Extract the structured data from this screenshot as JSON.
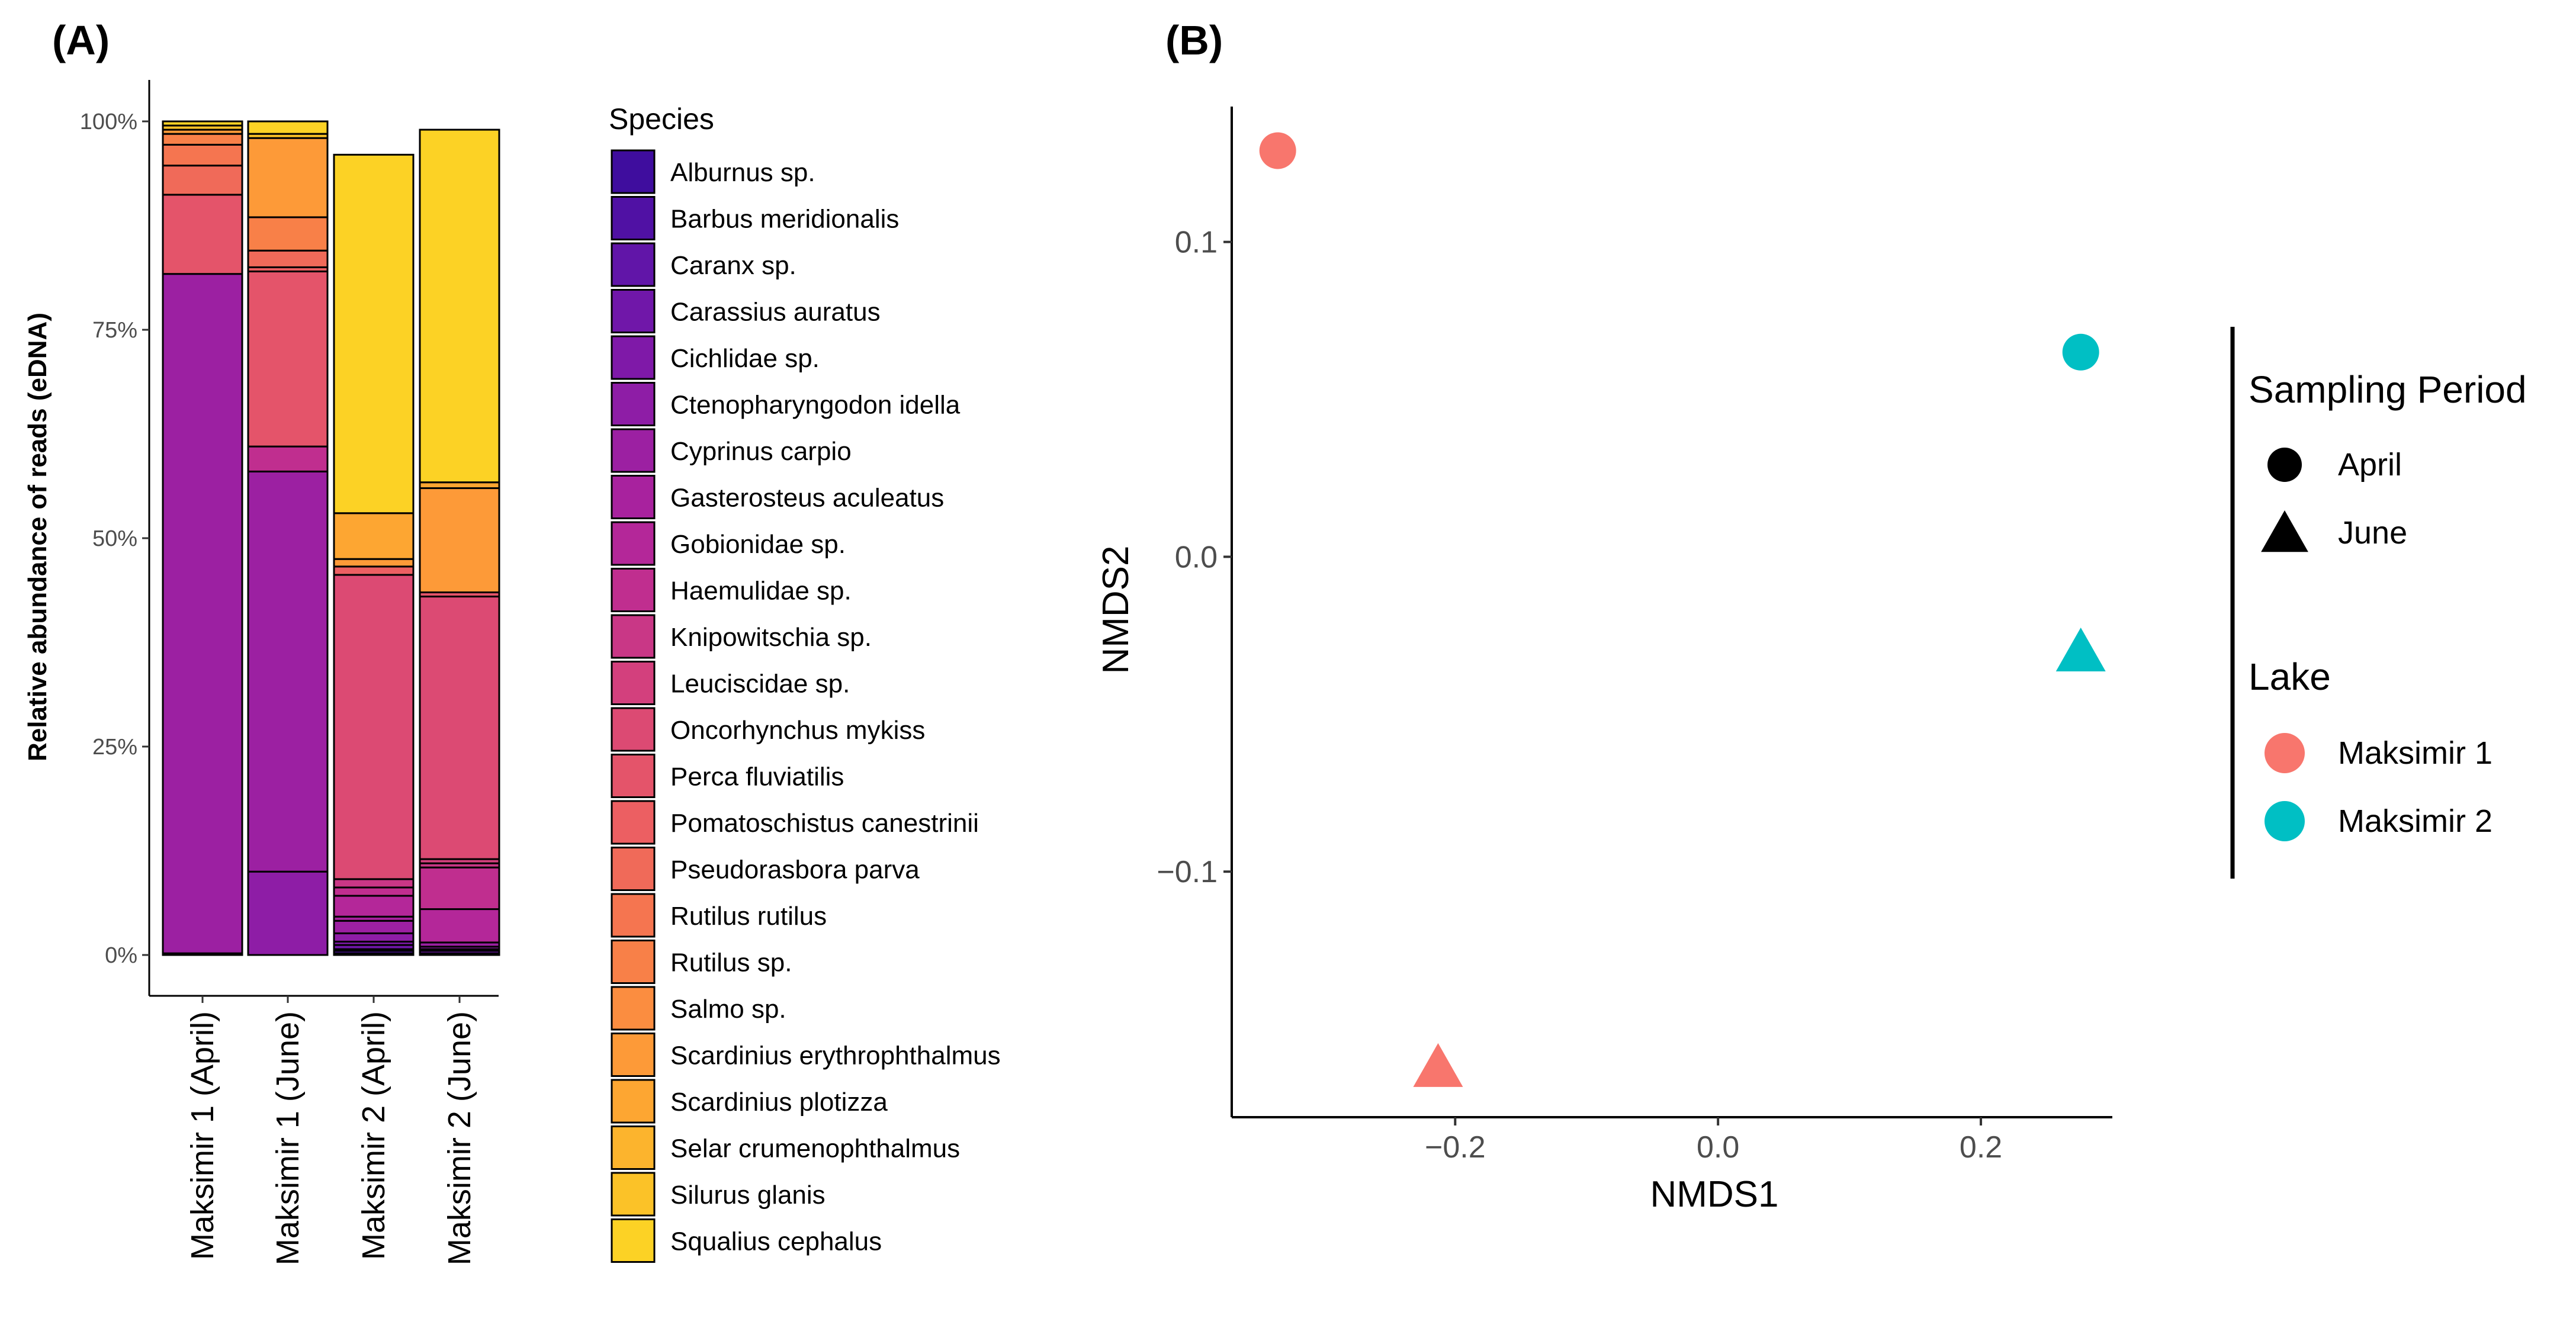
{
  "chart_data": [
    {
      "panel": "(A)",
      "type": "bar",
      "stacked": true,
      "ylabel": "Relative abundance of reads (eDNA)",
      "xlabel": "",
      "ylim": [
        0,
        100
      ],
      "yticks": [
        "0%",
        "25%",
        "50%",
        "75%",
        "100%"
      ],
      "categories": [
        "Maksimir 1 (April)",
        "Maksimir 1 (June)",
        "Maksimir 2 (April)",
        "Maksimir 2 (June)"
      ],
      "legend_title": "Species",
      "legend_position": "right",
      "series": [
        {
          "name": "Alburnus sp.",
          "color": "#3f0d9e",
          "values": [
            0.0,
            0.0,
            0.2,
            0.0
          ]
        },
        {
          "name": "Barbus meridionalis",
          "color": "#5011a4",
          "values": [
            0.2,
            0.0,
            0.3,
            0.2
          ]
        },
        {
          "name": "Caranx sp.",
          "color": "#6115a8",
          "values": [
            0.0,
            0.0,
            0.2,
            0.0
          ]
        },
        {
          "name": "Carassius auratus",
          "color": "#7017a9",
          "values": [
            0.0,
            0.0,
            0.5,
            0.3
          ]
        },
        {
          "name": "Cichlidae sp.",
          "color": "#7f19a8",
          "values": [
            0.0,
            0.0,
            0.4,
            0.2
          ]
        },
        {
          "name": "Ctenopharyngodon idella",
          "color": "#8e1da6",
          "values": [
            0.0,
            10.0,
            1.0,
            0.3
          ]
        },
        {
          "name": "Cyprinus carpio",
          "color": "#9c20a2",
          "values": [
            81.5,
            48.0,
            1.5,
            0.5
          ]
        },
        {
          "name": "Gasterosteus aculeatus",
          "color": "#a8229e",
          "values": [
            0.0,
            0.0,
            0.5,
            0.0
          ]
        },
        {
          "name": "Gobionidae sp.",
          "color": "#b42799",
          "values": [
            0.0,
            0.0,
            2.5,
            4.0
          ]
        },
        {
          "name": "Haemulidae sp.",
          "color": "#c02e8f",
          "values": [
            0.0,
            3.0,
            1.0,
            5.0
          ]
        },
        {
          "name": "Knipowitschia sp.",
          "color": "#c93786",
          "values": [
            0.0,
            0.0,
            1.0,
            0.5
          ]
        },
        {
          "name": "Leuciscidae sp.",
          "color": "#d3407d",
          "values": [
            0.0,
            0.0,
            0.0,
            0.5
          ]
        },
        {
          "name": "Oncorhynchus mykiss",
          "color": "#dc4a73",
          "values": [
            0.0,
            0.0,
            36.5,
            31.5
          ]
        },
        {
          "name": "Perca fluviatilis",
          "color": "#e4546a",
          "values": [
            9.5,
            21.0,
            0.0,
            0.5
          ]
        },
        {
          "name": "Pomatoschistus canestrinii",
          "color": "#ec5f62",
          "values": [
            0.0,
            0.5,
            1.0,
            0.0
          ]
        },
        {
          "name": "Pseudorasbora parva",
          "color": "#f06a59",
          "values": [
            3.5,
            2.0,
            0.0,
            0.0
          ]
        },
        {
          "name": "Rutilus rutilus",
          "color": "#f57550",
          "values": [
            2.5,
            0.0,
            0.0,
            0.0
          ]
        },
        {
          "name": "Rutilus sp.",
          "color": "#f88048",
          "values": [
            1.3,
            4.0,
            0.0,
            0.0
          ]
        },
        {
          "name": "Salmo sp.",
          "color": "#fb8d40",
          "values": [
            0.0,
            0.0,
            0.0,
            0.0
          ]
        },
        {
          "name": "Scardinius erythrophthalmus",
          "color": "#fd9a38",
          "values": [
            0.5,
            9.5,
            0.9,
            12.5
          ]
        },
        {
          "name": "Scardinius plotizza",
          "color": "#fda632",
          "values": [
            0.0,
            0.0,
            5.5,
            0.7
          ]
        },
        {
          "name": "Selar crumenophthalmus",
          "color": "#fcb42d",
          "values": [
            0.0,
            0.0,
            0.0,
            0.0
          ]
        },
        {
          "name": "Silurus glanis",
          "color": "#fbc228",
          "values": [
            0.5,
            0.5,
            0.0,
            0.0
          ]
        },
        {
          "name": "Squalius cephalus",
          "color": "#fcd225",
          "values": [
            0.5,
            1.5,
            43.0,
            42.3
          ]
        }
      ]
    },
    {
      "panel": "(B)",
      "type": "scatter",
      "xlabel": "NMDS1",
      "ylabel": "NMDS2",
      "xlim": [
        -0.37,
        0.3
      ],
      "ylim": [
        -0.178,
        0.143
      ],
      "xticks": [
        -0.2,
        0.0,
        0.2
      ],
      "xtick_labels": [
        "−0.2",
        "0.0",
        "0.2"
      ],
      "yticks": [
        -0.1,
        0.0,
        0.1
      ],
      "ytick_labels": [
        "−0.1",
        "0.0",
        "0.1"
      ],
      "points": [
        {
          "lake": "Maksimir 1",
          "period": "April",
          "x": -0.335,
          "y": 0.129
        },
        {
          "lake": "Maksimir 1",
          "period": "June",
          "x": -0.213,
          "y": -0.162
        },
        {
          "lake": "Maksimir 2",
          "period": "April",
          "x": 0.276,
          "y": 0.065
        },
        {
          "lake": "Maksimir 2",
          "period": "June",
          "x": 0.276,
          "y": -0.03
        }
      ],
      "legend_position": "right",
      "legend_shape": {
        "title": "Sampling Period",
        "items": [
          {
            "label": "April",
            "shape": "circle"
          },
          {
            "label": "June",
            "shape": "triangle"
          }
        ]
      },
      "legend_color": {
        "title": "Lake",
        "items": [
          {
            "label": "Maksimir 1",
            "color": "#f8766d"
          },
          {
            "label": "Maksimir 2",
            "color": "#00bfc4"
          }
        ]
      }
    }
  ]
}
